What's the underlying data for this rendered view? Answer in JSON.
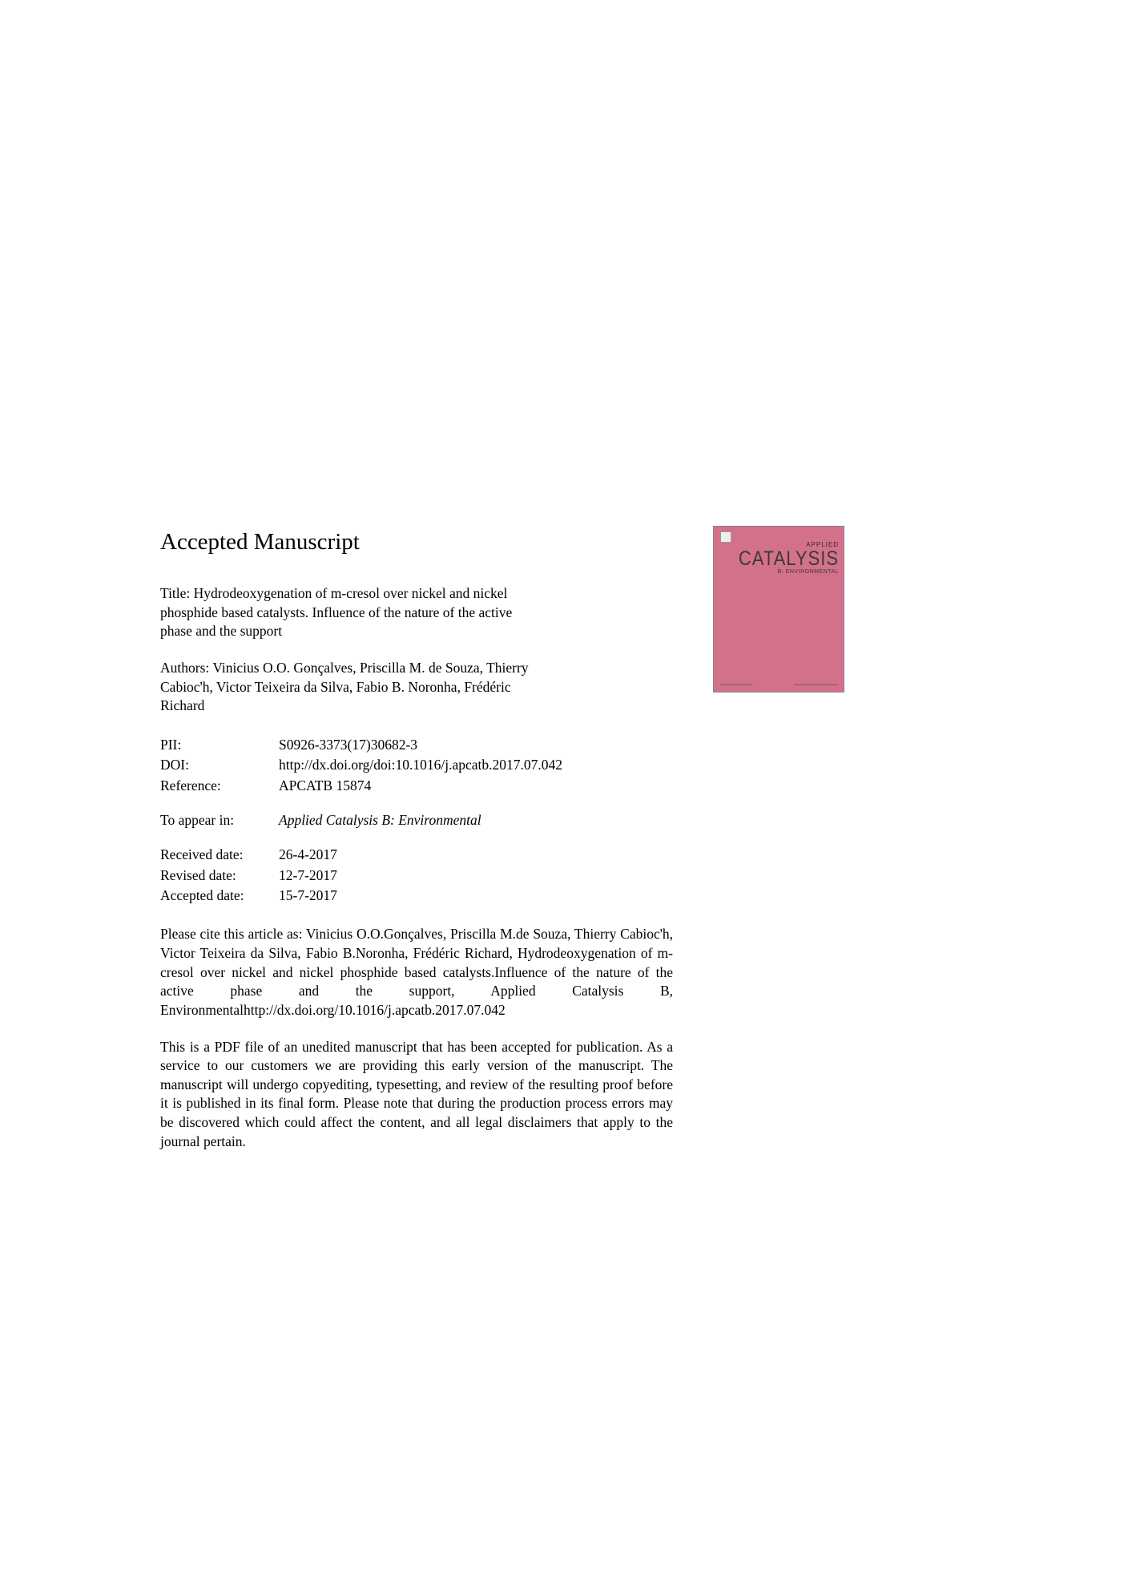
{
  "heading": "Accepted Manuscript",
  "title_label": "Title:",
  "title": "Hydrodeoxygenation of m-cresol over nickel and nickel phosphide based catalysts. Influence of the nature of the active phase and the support",
  "authors_label": "Authors:",
  "authors": "Vinicius O.O. Gonçalves, Priscilla M. de Souza, Thierry Cabioc'h, Victor Teixeira da Silva, Fabio B. Noronha, Frédéric Richard",
  "meta": {
    "pii_label": "PII:",
    "pii": "S0926-3373(17)30682-3",
    "doi_label": "DOI:",
    "doi": "http://dx.doi.org/doi:10.1016/j.apcatb.2017.07.042",
    "ref_label": "Reference:",
    "ref": "APCATB 15874",
    "appear_label": "To appear in:",
    "appear": "Applied Catalysis B: Environmental",
    "received_label": "Received date:",
    "received": "26-4-2017",
    "revised_label": "Revised date:",
    "revised": "12-7-2017",
    "accepted_label": "Accepted date:",
    "accepted": "15-7-2017"
  },
  "cite": "Please cite this article as: Vinicius O.O.Gonçalves, Priscilla M.de Souza, Thierry Cabioc'h, Victor Teixeira da Silva, Fabio B.Noronha, Frédéric Richard, Hydrodeoxygenation of m-cresol over nickel and nickel phosphide based catalysts.Influence of the nature of the active phase and the support, Applied Catalysis B, Environmentalhttp://dx.doi.org/10.1016/j.apcatb.2017.07.042",
  "disclaimer": "This is a PDF file of an unedited manuscript that has been accepted for publication. As a service to our customers we are providing this early version of the manuscript. The manuscript will undergo copyediting, typesetting, and review of the resulting proof before it is published in its final form. Please note that during the production process errors may be discovered which could affect the content, and all legal disclaimers that apply to the journal pertain.",
  "cover": {
    "applied": "APPLIED",
    "catalysis": "CATALYSIS",
    "sub": "B: ENVIRONMENTAL",
    "bg_color": "#d4718a"
  }
}
